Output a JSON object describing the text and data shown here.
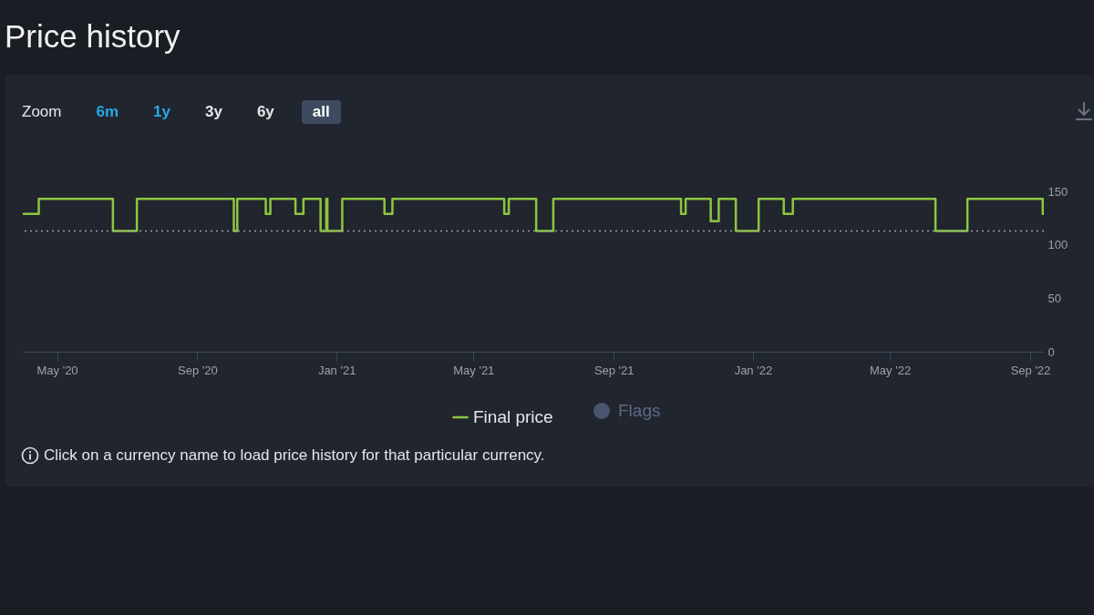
{
  "chart_data": {
    "type": "step",
    "title": "Price history",
    "x": [
      "2020-04-01",
      "2020-04-15",
      "2020-06-19",
      "2020-07-10",
      "2020-10-03",
      "2020-10-06",
      "2020-10-31",
      "2020-11-04",
      "2020-11-26",
      "2020-12-03",
      "2020-12-18",
      "2020-12-23",
      "2020-12-24",
      "2021-01-06",
      "2021-02-12",
      "2021-02-19",
      "2021-05-28",
      "2021-06-01",
      "2021-06-25",
      "2021-07-10",
      "2021-10-30",
      "2021-11-03",
      "2021-11-25",
      "2021-12-02",
      "2021-12-17",
      "2022-01-06",
      "2022-01-28",
      "2022-02-05",
      "2022-06-10",
      "2022-07-08",
      "2022-09-12",
      "2022-09-13"
    ],
    "series": [
      {
        "name": "Final price",
        "color": "#8cc63f",
        "values": [
          129,
          143,
          113,
          143,
          113,
          143,
          129,
          143,
          129,
          143,
          113,
          143,
          113,
          143,
          129,
          143,
          129,
          143,
          113,
          143,
          129,
          143,
          122,
          143,
          113,
          143,
          129,
          143,
          113,
          143,
          129,
          129
        ]
      }
    ],
    "xlim": [
      "2020-04-01",
      "2022-09-13"
    ],
    "xticks": [
      {
        "value": "2020-05-01",
        "label": "May '20"
      },
      {
        "value": "2020-09-01",
        "label": "Sep '20"
      },
      {
        "value": "2021-01-01",
        "label": "Jan '21"
      },
      {
        "value": "2021-05-01",
        "label": "May '21"
      },
      {
        "value": "2021-09-01",
        "label": "Sep '21"
      },
      {
        "value": "2022-01-01",
        "label": "Jan '22"
      },
      {
        "value": "2022-05-01",
        "label": "May '22"
      },
      {
        "value": "2022-09-01",
        "label": "Sep '22"
      }
    ],
    "ylim": [
      0,
      150
    ],
    "yticks": [
      0,
      50,
      100,
      150
    ],
    "ref_lines": [
      {
        "axis": "y",
        "value": 113,
        "color": "#9aa0a8",
        "line_style": "dotted"
      }
    ],
    "grid": false,
    "legend": "bottom",
    "marker": "none",
    "line_style": "solid",
    "annotations": [
      "Zoom",
      "6m",
      "1y",
      "3y",
      "6y",
      "all",
      "Flags",
      "Click on a currency name to load price history for that particular currency."
    ]
  }
}
